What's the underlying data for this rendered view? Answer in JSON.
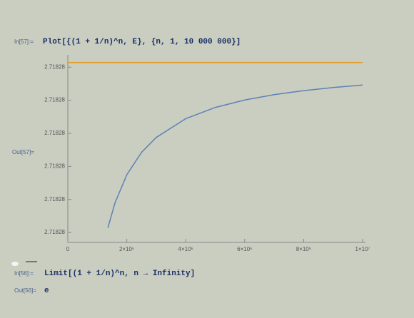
{
  "cell_57": {
    "in_label": "In[57]:=",
    "code": "Plot[{(1 + 1/n)^n, E}, {n, 1, 10 000 000}]",
    "out_label": "Out[57]="
  },
  "cell_56": {
    "in_label": "In[56]:=",
    "code": "Limit[(1 + 1/n)^n, n → Infinity]",
    "out_label": "Out[56]=",
    "result": "e"
  },
  "chart_data": {
    "type": "line",
    "series": [
      {
        "color": "#5e81b5",
        "x": [
          1360000,
          1600000,
          2000000,
          2500000,
          3000000,
          4000000,
          5000000,
          6000000,
          7000000,
          8000000,
          9000000,
          10000000
        ],
        "values": [
          2.7182808289,
          2.7182809788,
          2.7182811487,
          2.7182812846,
          2.7182813753,
          2.7182814885,
          2.7182815565,
          2.7182816018,
          2.7182816341,
          2.7182816584,
          2.7182816773,
          2.7182816924
        ]
      },
      {
        "color": "#e19c24",
        "x": [
          1,
          10000000
        ],
        "values": [
          2.718281828,
          2.718281828
        ]
      }
    ],
    "xlim": [
      0,
      10000000
    ],
    "xticks": [
      0,
      {
        "value": 2000000,
        "label": "2×10⁶"
      },
      {
        "value": 4000000,
        "label": "4×10⁶"
      },
      {
        "value": 6000000,
        "label": "6×10⁶"
      },
      {
        "value": 8000000,
        "label": "8×10⁶"
      },
      {
        "value": 10000000,
        "label": "1×10⁷"
      }
    ],
    "ylim": [
      2.71828074,
      2.71828184
    ],
    "yticks": [
      {
        "value": 2.7182808,
        "label": "2.71828"
      },
      {
        "value": 2.718281,
        "label": "2.71828"
      },
      {
        "value": 2.7182812,
        "label": "2.71828"
      },
      {
        "value": 2.7182814,
        "label": "2.71828"
      },
      {
        "value": 2.7182816,
        "label": "2.71828"
      },
      {
        "value": 2.7182818,
        "label": "2.71828"
      }
    ]
  }
}
